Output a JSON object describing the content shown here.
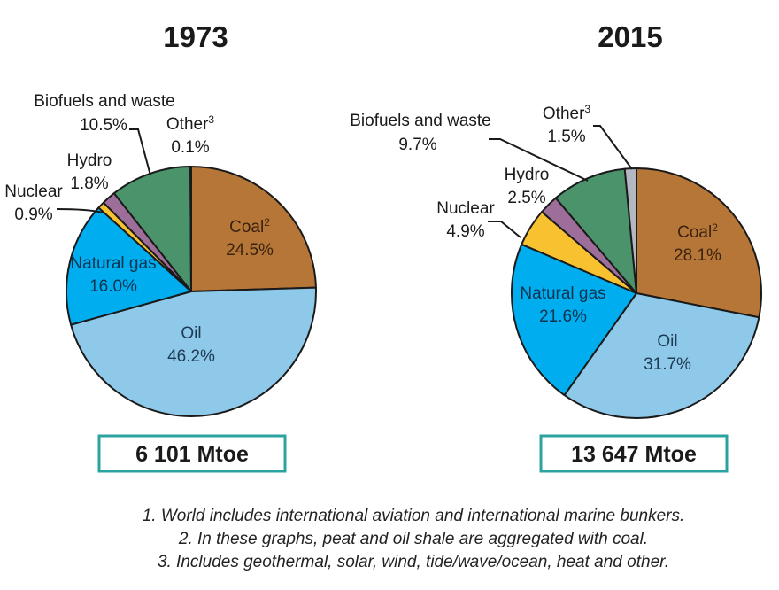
{
  "chart_data": [
    {
      "type": "pie",
      "title": "1973",
      "total": "6 101 Mtoe",
      "slices": [
        {
          "name": "Coal",
          "sup": "2",
          "value": 24.5,
          "label": "24.5%",
          "color": "#b57637",
          "text_color": "#3a2210"
        },
        {
          "name": "Oil",
          "sup": "",
          "value": 46.2,
          "label": "46.2%",
          "color": "#8ec9ea",
          "text_color": "#1d3a52"
        },
        {
          "name": "Natural gas",
          "sup": "",
          "value": 16.0,
          "label": "16.0%",
          "color": "#00aeef",
          "text_color": "#0d3350"
        },
        {
          "name": "Nuclear",
          "sup": "",
          "value": 0.9,
          "label": "0.9%",
          "color": "#f7c12f",
          "text_color": "#1a1a1a"
        },
        {
          "name": "Hydro",
          "sup": "",
          "value": 1.8,
          "label": "1.8%",
          "color": "#9d6e9a",
          "text_color": "#1a1a1a"
        },
        {
          "name": "Biofuels and waste",
          "sup": "",
          "value": 10.5,
          "label": "10.5%",
          "color": "#4a936b",
          "text_color": "#1a1a1a"
        },
        {
          "name": "Other",
          "sup": "3",
          "value": 0.1,
          "label": "0.1%",
          "color": "#b3b7c2",
          "text_color": "#1a1a1a"
        }
      ]
    },
    {
      "type": "pie",
      "title": "2015",
      "total": "13 647 Mtoe",
      "slices": [
        {
          "name": "Coal",
          "sup": "2",
          "value": 28.1,
          "label": "28.1%",
          "color": "#b57637",
          "text_color": "#3a2210"
        },
        {
          "name": "Oil",
          "sup": "",
          "value": 31.7,
          "label": "31.7%",
          "color": "#8ec9ea",
          "text_color": "#1d3a52"
        },
        {
          "name": "Natural gas",
          "sup": "",
          "value": 21.6,
          "label": "21.6%",
          "color": "#00aeef",
          "text_color": "#0d3350"
        },
        {
          "name": "Nuclear",
          "sup": "",
          "value": 4.9,
          "label": "4.9%",
          "color": "#f7c12f",
          "text_color": "#1a1a1a"
        },
        {
          "name": "Hydro",
          "sup": "",
          "value": 2.5,
          "label": "2.5%",
          "color": "#9d6e9a",
          "text_color": "#1a1a1a"
        },
        {
          "name": "Biofuels and waste",
          "sup": "",
          "value": 9.7,
          "label": "9.7%",
          "color": "#4a936b",
          "text_color": "#1a1a1a"
        },
        {
          "name": "Other",
          "sup": "3",
          "value": 1.5,
          "label": "1.5%",
          "color": "#b3b7c2",
          "text_color": "#1a1a1a"
        }
      ]
    }
  ],
  "total_box_border_color": "#2aa3a0",
  "footnotes": [
    "1. World includes international aviation and international marine bunkers.",
    "2. In these graphs, peat and oil shale are aggregated with coal.",
    "3. Includes geothermal, solar, wind, tide/wave/ocean, heat and other."
  ]
}
